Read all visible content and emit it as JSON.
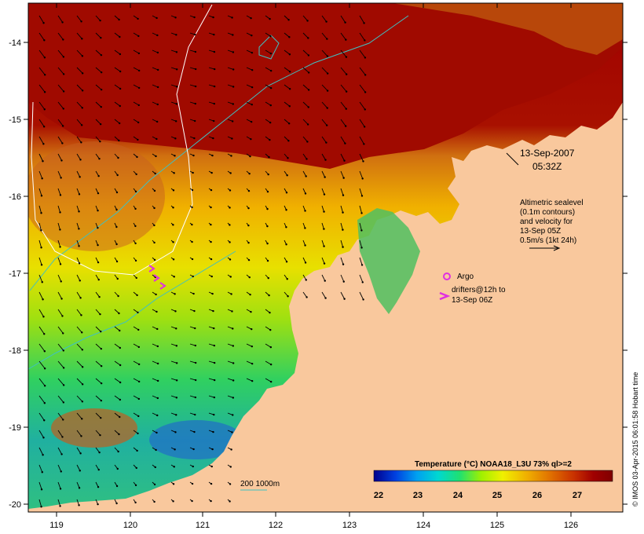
{
  "map": {
    "longitudes": [
      "119",
      "120",
      "121",
      "122",
      "123",
      "124",
      "125",
      "126"
    ],
    "latitudes": [
      "-14",
      "-15",
      "-16",
      "-17",
      "-18",
      "-19",
      "-20"
    ]
  },
  "annotations": {
    "date": "13-Sep-2007",
    "time": "05:32Z",
    "altimetry": [
      "Altimetric sealevel",
      "(0.1m contours)",
      "and velocity for",
      "13-Sep 05Z",
      "0.5m/s (1kt 24h)"
    ],
    "argo_label": "Argo",
    "drifters": [
      "drifters@12h to",
      "13-Sep 06Z"
    ],
    "isobath": "200  1000m"
  },
  "colorbar": {
    "title": "Temperature (°C) NOAA18_L3U 73% ql>=2",
    "ticks": [
      "22",
      "23",
      "24",
      "25",
      "26",
      "27"
    ],
    "colors": [
      "#00008b",
      "#0040e0",
      "#00a0f0",
      "#00d8d0",
      "#20e070",
      "#a0f000",
      "#f0f000",
      "#f0b000",
      "#e07000",
      "#c83000",
      "#a00000",
      "#800000"
    ]
  },
  "credit": "© IMOS 03-Apr-2015 06:01:58 Hobart time",
  "colors": {
    "land": "#f9c89d",
    "warm": "#a81000",
    "isobath": "#40c0c0",
    "contour": "#ffffff",
    "argo": "#e030e0"
  }
}
